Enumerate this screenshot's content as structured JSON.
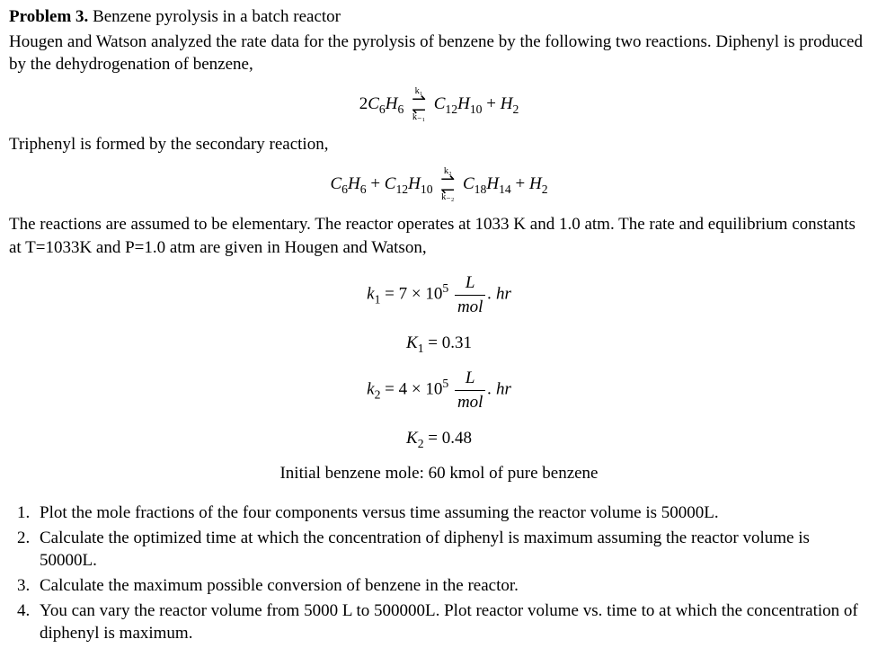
{
  "header": {
    "problem_label": "Problem 3.",
    "title": " Benzene pyrolysis in a batch reactor",
    "intro1": "Hougen and Watson analyzed the rate data for the pyrolysis of benzene by the following two reactions. Diphenyl is produced by the dehydrogenation of benzene,",
    "intro2": "Triphenyl is formed by the secondary reaction,",
    "intro3": "The reactions are assumed to be elementary. The reactor operates at 1033 K and 1.0 atm. The rate and equilibrium constants at T=1033K and P=1.0 atm are given in Hougen and Watson,"
  },
  "rxn1": {
    "lhs_coeff": "2",
    "lhs_species_base": "C",
    "lhs_species_sub1": "6",
    "lhs_species_mid": "H",
    "lhs_species_sub2": "6",
    "k_fwd": "k₁",
    "k_rev": "k₋₁",
    "rhs1_base": "C",
    "rhs1_sub1": "12",
    "rhs1_mid": "H",
    "rhs1_sub2": "10",
    "plus": " + ",
    "rhs2_base": "H",
    "rhs2_sub": "2"
  },
  "rxn2": {
    "lhs1_base": "C",
    "lhs1_sub1": "6",
    "lhs1_mid": "H",
    "lhs1_sub2": "6",
    "plus1": " + ",
    "lhs2_base": "C",
    "lhs2_sub1": "12",
    "lhs2_mid": "H",
    "lhs2_sub2": "10",
    "k_fwd": "k₂",
    "k_rev": "k₋₂",
    "rhs1_base": "C",
    "rhs1_sub1": "18",
    "rhs1_mid": "H",
    "rhs1_sub2": "14",
    "plus2": " + ",
    "rhs2_base": "H",
    "rhs2_sub": "2"
  },
  "consts": {
    "k1_sym": "k",
    "k1_sub": "1",
    "k1_eq": " = 7 × 10",
    "k1_exp": "5",
    "k1_frac_num": "L",
    "k1_frac_den": "mol",
    "k1_unit_tail": ". hr",
    "K1_sym": "K",
    "K1_sub": "1",
    "K1_val": " = 0.31",
    "k2_sym": "k",
    "k2_sub": "2",
    "k2_eq": " = 4 × 10",
    "k2_exp": "5",
    "k2_frac_num": "L",
    "k2_frac_den": "mol",
    "k2_unit_tail": ". hr",
    "K2_sym": "K",
    "K2_sub": "2",
    "K2_val": " = 0.48"
  },
  "initial": "Initial benzene mole: 60 kmol of pure benzene",
  "questions": {
    "q1": "Plot the mole fractions of the four components versus time assuming the reactor volume is 50000L.",
    "q2": "Calculate the optimized time at which the concentration of diphenyl is maximum assuming the reactor volume is 50000L.",
    "q3": "Calculate the maximum possible conversion of benzene in the reactor.",
    "q4": "You can vary the reactor volume from 5000 L to 500000L. Plot reactor volume vs. time to at which the concentration of diphenyl is maximum."
  }
}
